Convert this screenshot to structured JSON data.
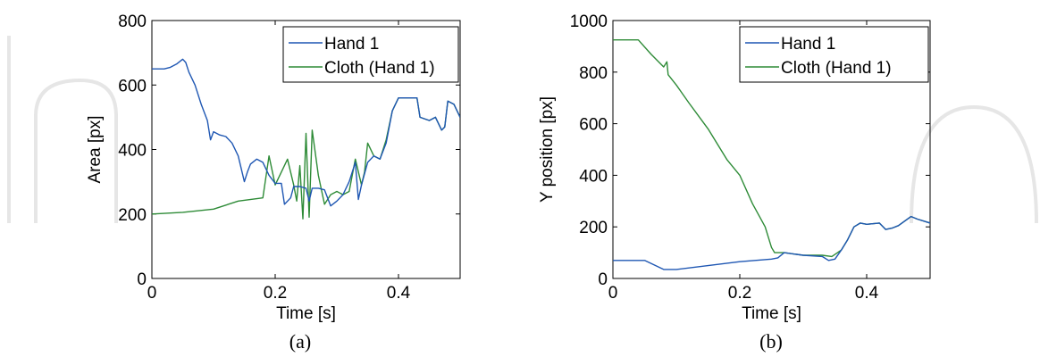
{
  "chart_data": [
    {
      "type": "line",
      "panel_label": "(a)",
      "xlabel": "Time [s]",
      "ylabel": "Area [px]",
      "xlim": [
        0,
        0.5
      ],
      "ylim": [
        0,
        800
      ],
      "xticks": [
        0,
        0.2,
        0.4
      ],
      "xtick_labels": [
        "0",
        "0.2",
        "0.4"
      ],
      "yticks": [
        0,
        200,
        400,
        600,
        800
      ],
      "ytick_labels": [
        "0",
        "200",
        "400",
        "600",
        "800"
      ],
      "legend": "top-right",
      "series": [
        {
          "name": "Hand 1",
          "color": "#1f57b3",
          "points": [
            [
              0,
              650
            ],
            [
              0.02,
              650
            ],
            [
              0.03,
              655
            ],
            [
              0.04,
              665
            ],
            [
              0.05,
              680
            ],
            [
              0.055,
              670
            ],
            [
              0.06,
              640
            ],
            [
              0.07,
              600
            ],
            [
              0.08,
              540
            ],
            [
              0.09,
              490
            ],
            [
              0.095,
              430
            ],
            [
              0.1,
              455
            ],
            [
              0.11,
              445
            ],
            [
              0.12,
              440
            ],
            [
              0.13,
              420
            ],
            [
              0.14,
              380
            ],
            [
              0.15,
              300
            ],
            [
              0.155,
              330
            ],
            [
              0.16,
              355
            ],
            [
              0.17,
              370
            ],
            [
              0.18,
              360
            ],
            [
              0.19,
              320
            ],
            [
              0.2,
              295
            ],
            [
              0.21,
              295
            ],
            [
              0.215,
              230
            ],
            [
              0.225,
              250
            ],
            [
              0.23,
              285
            ],
            [
              0.24,
              285
            ],
            [
              0.25,
              280
            ],
            [
              0.255,
              240
            ],
            [
              0.26,
              280
            ],
            [
              0.27,
              280
            ],
            [
              0.28,
              275
            ],
            [
              0.29,
              225
            ],
            [
              0.3,
              240
            ],
            [
              0.31,
              260
            ],
            [
              0.32,
              300
            ],
            [
              0.33,
              360
            ],
            [
              0.335,
              245
            ],
            [
              0.34,
              290
            ],
            [
              0.35,
              360
            ],
            [
              0.36,
              380
            ],
            [
              0.37,
              370
            ],
            [
              0.38,
              420
            ],
            [
              0.39,
              520
            ],
            [
              0.4,
              560
            ],
            [
              0.41,
              560
            ],
            [
              0.42,
              560
            ],
            [
              0.43,
              560
            ],
            [
              0.435,
              500
            ],
            [
              0.45,
              490
            ],
            [
              0.46,
              500
            ],
            [
              0.47,
              460
            ],
            [
              0.475,
              470
            ],
            [
              0.48,
              550
            ],
            [
              0.49,
              540
            ],
            [
              0.5,
              500
            ]
          ]
        },
        {
          "name": "Cloth (Hand 1)",
          "color": "#2e8b37",
          "points": [
            [
              0,
              200
            ],
            [
              0.05,
              205
            ],
            [
              0.1,
              215
            ],
            [
              0.14,
              240
            ],
            [
              0.18,
              250
            ],
            [
              0.19,
              380
            ],
            [
              0.2,
              290
            ],
            [
              0.21,
              330
            ],
            [
              0.22,
              370
            ],
            [
              0.23,
              290
            ],
            [
              0.235,
              240
            ],
            [
              0.24,
              350
            ],
            [
              0.245,
              185
            ],
            [
              0.25,
              450
            ],
            [
              0.255,
              190
            ],
            [
              0.26,
              460
            ],
            [
              0.27,
              320
            ],
            [
              0.28,
              230
            ],
            [
              0.29,
              260
            ],
            [
              0.3,
              270
            ],
            [
              0.31,
              260
            ],
            [
              0.32,
              270
            ],
            [
              0.33,
              370
            ],
            [
              0.34,
              290
            ],
            [
              0.345,
              330
            ],
            [
              0.35,
              420
            ],
            [
              0.36,
              380
            ],
            [
              0.37,
              370
            ],
            [
              0.38,
              430
            ],
            [
              0.39,
              520
            ],
            [
              0.4,
              560
            ],
            [
              0.41,
              560
            ],
            [
              0.42,
              560
            ],
            [
              0.43,
              560
            ],
            [
              0.435,
              500
            ],
            [
              0.45,
              490
            ],
            [
              0.46,
              500
            ],
            [
              0.47,
              460
            ],
            [
              0.475,
              470
            ],
            [
              0.48,
              550
            ],
            [
              0.49,
              540
            ],
            [
              0.5,
              500
            ]
          ]
        }
      ]
    },
    {
      "type": "line",
      "panel_label": "(b)",
      "xlabel": "Time [s]",
      "ylabel": "Y position [px]",
      "xlim": [
        0,
        0.5
      ],
      "ylim": [
        0,
        1000
      ],
      "xticks": [
        0,
        0.2,
        0.4
      ],
      "xtick_labels": [
        "0",
        "0.2",
        "0.4"
      ],
      "yticks": [
        0,
        200,
        400,
        600,
        800,
        1000
      ],
      "ytick_labels": [
        "0",
        "200",
        "400",
        "600",
        "800",
        "1000"
      ],
      "legend": "top-right",
      "series": [
        {
          "name": "Hand 1",
          "color": "#1f57b3",
          "points": [
            [
              0,
              70
            ],
            [
              0.05,
              70
            ],
            [
              0.08,
              35
            ],
            [
              0.1,
              35
            ],
            [
              0.15,
              50
            ],
            [
              0.2,
              65
            ],
            [
              0.25,
              75
            ],
            [
              0.26,
              80
            ],
            [
              0.27,
              100
            ],
            [
              0.3,
              90
            ],
            [
              0.33,
              85
            ],
            [
              0.34,
              70
            ],
            [
              0.35,
              75
            ],
            [
              0.36,
              110
            ],
            [
              0.37,
              150
            ],
            [
              0.38,
              200
            ],
            [
              0.39,
              215
            ],
            [
              0.4,
              210
            ],
            [
              0.42,
              215
            ],
            [
              0.43,
              190
            ],
            [
              0.44,
              195
            ],
            [
              0.45,
              205
            ],
            [
              0.47,
              240
            ],
            [
              0.48,
              230
            ],
            [
              0.5,
              215
            ]
          ]
        },
        {
          "name": "Cloth (Hand 1)",
          "color": "#2e8b37",
          "points": [
            [
              0,
              925
            ],
            [
              0.04,
              925
            ],
            [
              0.06,
              870
            ],
            [
              0.08,
              820
            ],
            [
              0.085,
              840
            ],
            [
              0.087,
              790
            ],
            [
              0.1,
              750
            ],
            [
              0.12,
              680
            ],
            [
              0.15,
              580
            ],
            [
              0.18,
              460
            ],
            [
              0.2,
              400
            ],
            [
              0.22,
              290
            ],
            [
              0.24,
              200
            ],
            [
              0.25,
              120
            ],
            [
              0.255,
              100
            ],
            [
              0.27,
              100
            ],
            [
              0.3,
              90
            ],
            [
              0.33,
              90
            ],
            [
              0.345,
              85
            ],
            [
              0.36,
              110
            ],
            [
              0.37,
              150
            ],
            [
              0.38,
              200
            ],
            [
              0.39,
              215
            ],
            [
              0.4,
              210
            ],
            [
              0.42,
              215
            ],
            [
              0.43,
              190
            ],
            [
              0.44,
              195
            ],
            [
              0.45,
              205
            ],
            [
              0.47,
              240
            ],
            [
              0.48,
              230
            ],
            [
              0.5,
              215
            ]
          ]
        }
      ]
    }
  ]
}
